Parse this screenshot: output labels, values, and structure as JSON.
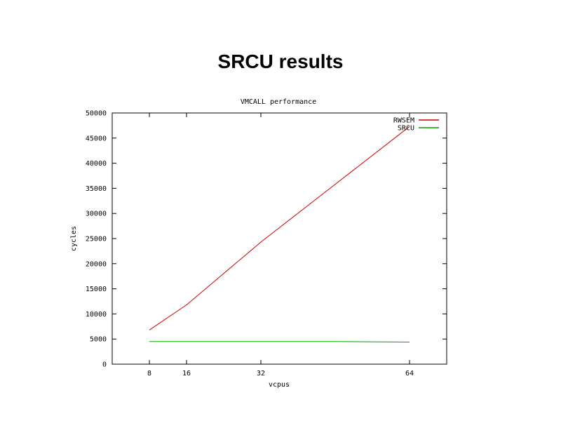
{
  "slide": {
    "title": "SRCU results"
  },
  "chart_data": {
    "type": "line",
    "title": "VMCALL performance",
    "xlabel": "vcpus",
    "ylabel": "cycles",
    "xlim": [
      0,
      72
    ],
    "ylim": [
      0,
      50000
    ],
    "xticks": [
      8,
      16,
      32,
      64
    ],
    "yticks": [
      0,
      5000,
      10000,
      15000,
      20000,
      25000,
      30000,
      35000,
      40000,
      45000,
      50000
    ],
    "grid": false,
    "legend_position": "top-right",
    "series": [
      {
        "name": "RWSEM",
        "color": "#cc0000",
        "x": [
          8,
          16,
          32,
          64
        ],
        "y": [
          6800,
          11800,
          24300,
          47300
        ]
      },
      {
        "name": "SRCU",
        "color": "#00a000",
        "x": [
          8,
          16,
          32,
          48,
          64
        ],
        "y": [
          4500,
          4500,
          4500,
          4500,
          4400
        ]
      }
    ]
  }
}
